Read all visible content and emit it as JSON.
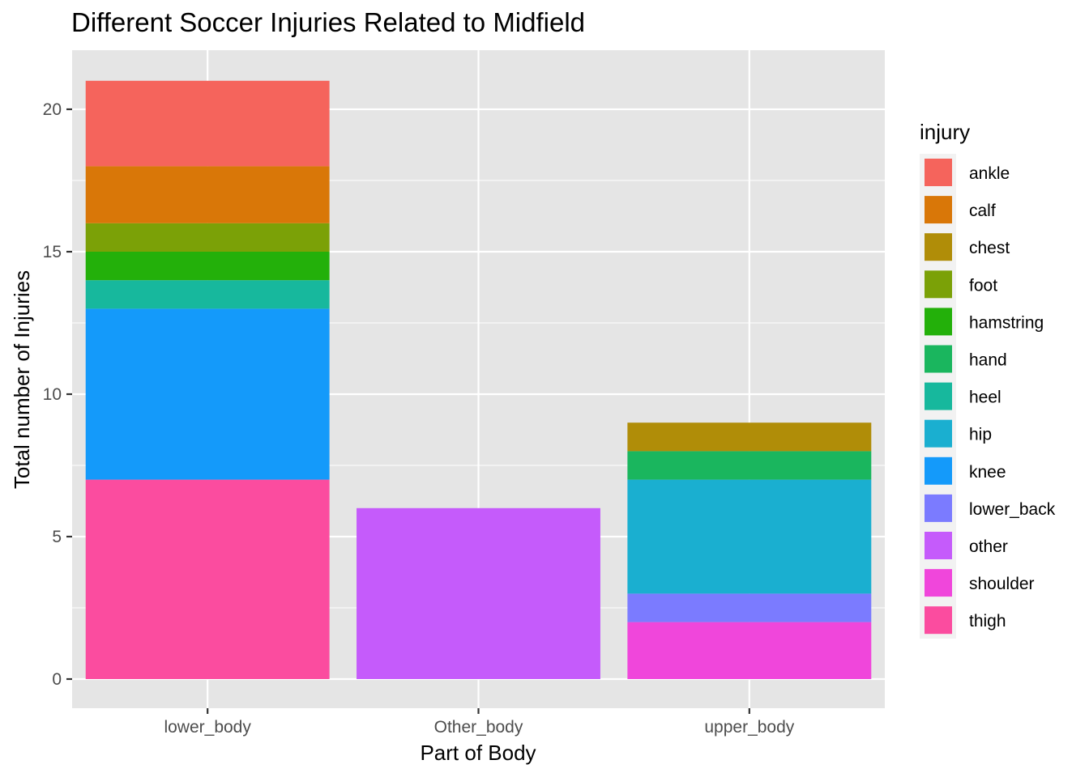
{
  "chart_data": {
    "type": "bar",
    "stacked": true,
    "title": "Different Soccer Injuries Related to Midfield",
    "xlabel": "Part of Body",
    "ylabel": "Total number of Injuries",
    "categories": [
      "lower_body",
      "Other_body",
      "upper_body"
    ],
    "ylim": [
      -1,
      22
    ],
    "yticks": [
      0,
      5,
      10,
      15,
      20
    ],
    "grid": true,
    "legend_title": "injury",
    "legend_position": "right",
    "series": [
      {
        "name": "ankle",
        "color": "#F8766D",
        "values": [
          3,
          0,
          0
        ]
      },
      {
        "name": "calf",
        "color": "#DE8C00",
        "values": [
          2,
          0,
          0
        ]
      },
      {
        "name": "chest",
        "color": "#B79F00",
        "values": [
          0,
          0,
          1
        ]
      },
      {
        "name": "foot",
        "color": "#7CAE00",
        "values": [
          1,
          0,
          0
        ]
      },
      {
        "name": "hamstring",
        "color": "#00BA38",
        "values": [
          1,
          0,
          0
        ]
      },
      {
        "name": "hand",
        "color": "#00C08B",
        "values": [
          0,
          0,
          1
        ]
      },
      {
        "name": "heel",
        "color": "#00BFC4",
        "values": [
          1,
          0,
          0
        ]
      },
      {
        "name": "hip",
        "color": "#00B4F0",
        "values": [
          0,
          0,
          4
        ]
      },
      {
        "name": "knee",
        "color": "#619CFF",
        "values": [
          6,
          0,
          0
        ]
      },
      {
        "name": "lower_back",
        "color": "#8D8CFF",
        "values": [
          0,
          0,
          1
        ]
      },
      {
        "name": "other",
        "color": "#C77CFF",
        "values": [
          0,
          6,
          0
        ]
      },
      {
        "name": "shoulder",
        "color": "#F564E3",
        "values": [
          0,
          0,
          2
        ]
      },
      {
        "name": "thigh",
        "color": "#FF64B0",
        "values": [
          7,
          0,
          0
        ]
      }
    ],
    "render_colors": {
      "ankle": "#F5645C",
      "calf": "#D97708",
      "chest": "#B08D08",
      "foot": "#7BA107",
      "hamstring": "#23B00A",
      "hand": "#1AB65E",
      "heel": "#17B89D",
      "hip": "#1AAFD0",
      "knee": "#149AFA",
      "lower_back": "#7B7BFF",
      "other": "#C55BFB",
      "shoulder": "#F046DB",
      "thigh": "#FB4C9F"
    },
    "panel_background": "#E5E5E5",
    "grid_color": "#FFFFFF"
  }
}
